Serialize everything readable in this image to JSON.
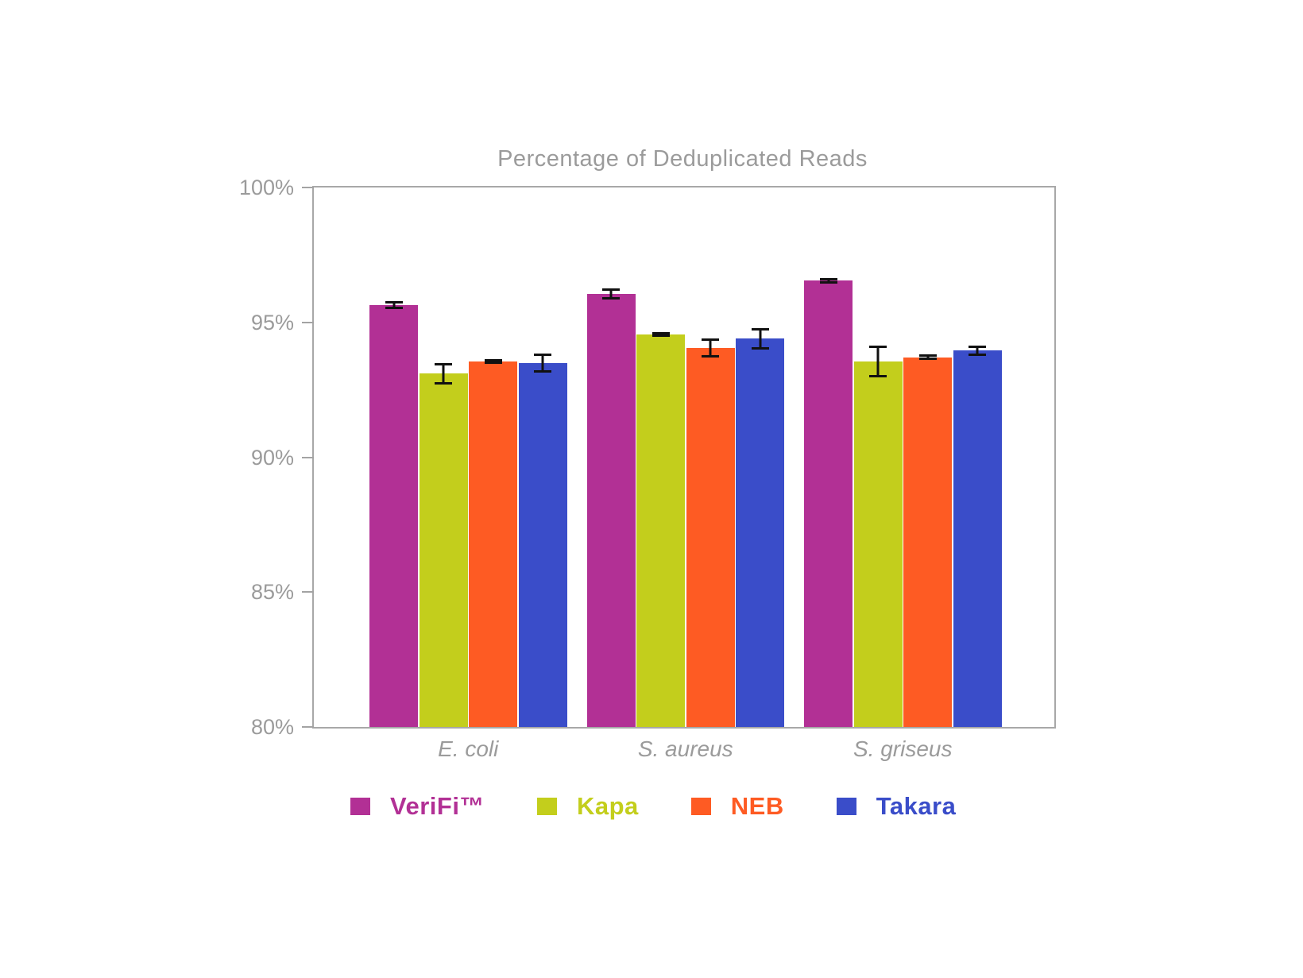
{
  "chart_data": {
    "type": "bar",
    "title": "Percentage of Deduplicated Reads",
    "categories": [
      "E. coli",
      "S. aureus",
      "S. griseus"
    ],
    "series": [
      {
        "name": "VeriFi™",
        "color": "#B23095",
        "values": [
          95.65,
          96.05,
          96.55
        ],
        "errors": [
          0.15,
          0.2,
          0.1
        ]
      },
      {
        "name": "Kapa",
        "color": "#C3CE1C",
        "values": [
          93.1,
          94.55,
          93.55
        ],
        "errors": [
          0.4,
          0.1,
          0.6
        ]
      },
      {
        "name": "NEB",
        "color": "#FE5B23",
        "values": [
          93.55,
          94.05,
          93.7
        ],
        "errors": [
          0.1,
          0.35,
          0.1
        ]
      },
      {
        "name": "Takara",
        "color": "#3A4DC9",
        "values": [
          93.5,
          94.4,
          93.95
        ],
        "errors": [
          0.35,
          0.4,
          0.2
        ]
      }
    ],
    "ylim": [
      80,
      100
    ],
    "yticks": [
      80,
      85,
      90,
      95,
      100
    ],
    "ytick_suffix": "%",
    "grid": false,
    "error_bars": true,
    "legend_position": "bottom",
    "axis_color": "#A8A8A8",
    "text_color": "#9B9B9B",
    "errorbar_color": "#111111"
  }
}
